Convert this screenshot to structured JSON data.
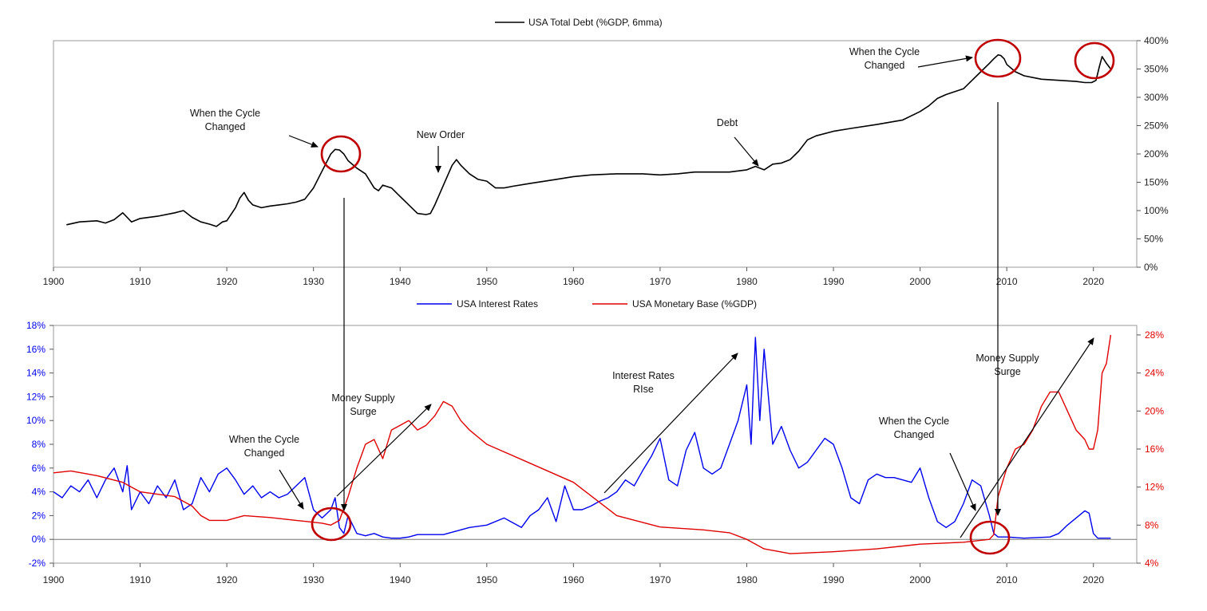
{
  "chart_data": [
    {
      "type": "line",
      "legend_position": "top-center",
      "grid": false,
      "xlim": [
        1900,
        2025
      ],
      "ylim": [
        0,
        400
      ],
      "x_ticks": [
        1900,
        1910,
        1920,
        1930,
        1940,
        1950,
        1960,
        1970,
        1980,
        1990,
        2000,
        2010,
        2020
      ],
      "y_ticks": [
        0,
        50,
        100,
        150,
        200,
        250,
        300,
        350,
        400
      ],
      "y_tick_labels": [
        "0%",
        "50%",
        "100%",
        "150%",
        "200%",
        "250%",
        "300%",
        "350%",
        "400%"
      ],
      "series": [
        {
          "name": "USA Total Debt (%GDP, 6mma)",
          "color": "#000000",
          "x": [
            1901.5,
            1903,
            1905,
            1906,
            1907,
            1908,
            1908.5,
            1909,
            1910,
            1912,
            1914,
            1915,
            1916,
            1917,
            1918,
            1918.8,
            1919.5,
            1920,
            1921,
            1921.5,
            1922,
            1922.5,
            1923,
            1924,
            1925,
            1926,
            1927,
            1928,
            1929,
            1930,
            1931,
            1932,
            1932.5,
            1933,
            1933.5,
            1934,
            1935,
            1936,
            1937,
            1937.5,
            1938,
            1939,
            1940,
            1941,
            1942,
            1943,
            1943.5,
            1944,
            1945,
            1946,
            1946.5,
            1947,
            1948,
            1949,
            1950,
            1951,
            1952,
            1953,
            1955,
            1958,
            1960,
            1962,
            1965,
            1968,
            1970,
            1972,
            1974,
            1976,
            1978,
            1980,
            1981,
            1982,
            1983,
            1984,
            1985,
            1986,
            1987,
            1988,
            1990,
            1992,
            1995,
            1998,
            2000,
            2001,
            2002,
            2003,
            2005,
            2006,
            2007,
            2008,
            2008.5,
            2009,
            2009.3,
            2009.7,
            2010,
            2011,
            2012,
            2014,
            2016,
            2018,
            2019,
            2019.8,
            2020.3,
            2020.7,
            2021,
            2021.5,
            2022
          ],
          "y": [
            75,
            80,
            82,
            78,
            84,
            96,
            88,
            80,
            86,
            90,
            96,
            100,
            88,
            80,
            76,
            72,
            80,
            82,
            105,
            122,
            132,
            118,
            110,
            105,
            108,
            110,
            112,
            115,
            120,
            140,
            170,
            200,
            208,
            207,
            200,
            188,
            175,
            165,
            140,
            135,
            145,
            140,
            125,
            110,
            95,
            93,
            95,
            110,
            145,
            180,
            190,
            180,
            165,
            155,
            152,
            140,
            140,
            143,
            148,
            155,
            160,
            163,
            165,
            165,
            163,
            165,
            168,
            168,
            168,
            172,
            178,
            172,
            182,
            184,
            190,
            205,
            225,
            232,
            240,
            245,
            252,
            260,
            275,
            285,
            298,
            305,
            315,
            330,
            345,
            360,
            368,
            375,
            374,
            368,
            358,
            345,
            338,
            332,
            330,
            328,
            326,
            326,
            330,
            355,
            372,
            360,
            350
          ]
        }
      ],
      "annotations": [
        {
          "text": [
            "When the Cycle",
            "Changed"
          ]
        },
        {
          "text": [
            "New Order"
          ]
        },
        {
          "text": [
            "Debt"
          ]
        },
        {
          "text": [
            "When the Cycle",
            "Changed"
          ]
        }
      ]
    },
    {
      "type": "line",
      "legend_position": "top-center",
      "grid": false,
      "xlim": [
        1900,
        2025
      ],
      "ylim": [
        -2,
        18
      ],
      "y2lim": [
        4,
        29
      ],
      "x_ticks": [
        1900,
        1910,
        1920,
        1930,
        1940,
        1950,
        1960,
        1970,
        1980,
        1990,
        2000,
        2010,
        2020
      ],
      "y_ticks": [
        -2,
        0,
        2,
        4,
        6,
        8,
        10,
        12,
        14,
        16,
        18
      ],
      "y_tick_labels": [
        "-2%",
        "0%",
        "2%",
        "4%",
        "6%",
        "8%",
        "10%",
        "12%",
        "14%",
        "16%",
        "18%"
      ],
      "y2_ticks": [
        4,
        8,
        12,
        16,
        20,
        24,
        28
      ],
      "y2_tick_labels": [
        "4%",
        "8%",
        "12%",
        "16%",
        "20%",
        "24%",
        "28%"
      ],
      "series": [
        {
          "name": "USA Interest Rates",
          "color": "#0000ee",
          "axis": "left",
          "x": [
            1900,
            1901,
            1902,
            1903,
            1904,
            1905,
            1906,
            1907,
            1908,
            1908.5,
            1909,
            1910,
            1911,
            1912,
            1913,
            1914,
            1915,
            1916,
            1917,
            1918,
            1919,
            1920,
            1921,
            1922,
            1923,
            1924,
            1925,
            1926,
            1927,
            1928,
            1929,
            1930,
            1931,
            1932,
            1932.5,
            1933,
            1933.5,
            1934,
            1935,
            1936,
            1937,
            1938,
            1939,
            1940,
            1941,
            1942,
            1945,
            1948,
            1950,
            1952,
            1954,
            1955,
            1956,
            1957,
            1958,
            1959,
            1960,
            1961,
            1962,
            1963,
            1964,
            1965,
            1966,
            1967,
            1968,
            1969,
            1970,
            1971,
            1972,
            1973,
            1974,
            1975,
            1976,
            1977,
            1978,
            1979,
            1980,
            1980.5,
            1981,
            1981.5,
            1982,
            1983,
            1984,
            1985,
            1986,
            1987,
            1988,
            1989,
            1990,
            1991,
            1992,
            1993,
            1994,
            1995,
            1996,
            1997,
            1998,
            1999,
            2000,
            2001,
            2002,
            2003,
            2004,
            2005,
            2006,
            2007,
            2008,
            2008.5,
            2009,
            2010,
            2012,
            2015,
            2016,
            2017,
            2018,
            2019,
            2019.5,
            2020,
            2020.5,
            2021,
            2022
          ],
          "y": [
            4,
            3.5,
            4.5,
            4,
            5,
            3.5,
            5,
            6,
            4,
            6.2,
            2.5,
            4,
            3,
            4.5,
            3.5,
            5,
            2.5,
            3,
            5.2,
            4,
            5.5,
            6,
            5,
            3.8,
            4.5,
            3.5,
            4,
            3.5,
            3.8,
            4.5,
            5.2,
            2.5,
            1.8,
            2.5,
            3.5,
            1,
            0.5,
            2,
            0.5,
            0.3,
            0.5,
            0.2,
            0.1,
            0.1,
            0.2,
            0.4,
            0.4,
            1,
            1.2,
            1.8,
            1,
            2,
            2.5,
            3.5,
            1.5,
            4.5,
            2.5,
            2.5,
            2.8,
            3.2,
            3.5,
            4,
            5,
            4.5,
            5.8,
            7,
            8.5,
            5,
            4.5,
            7.5,
            9,
            6,
            5.5,
            6,
            8,
            10,
            13,
            8,
            17,
            10,
            16,
            8,
            9.5,
            7.5,
            6,
            6.5,
            7.5,
            8.5,
            8,
            6,
            3.5,
            3,
            5,
            5.5,
            5.2,
            5.2,
            5,
            4.8,
            6,
            3.5,
            1.5,
            1,
            1.5,
            3,
            5,
            4.5,
            2,
            0.5,
            0.2,
            0.2,
            0.1,
            0.2,
            0.5,
            1.2,
            1.8,
            2.4,
            2.2,
            0.5,
            0.1,
            0.1,
            0.1
          ]
        },
        {
          "name": "USA Monetary Base (%GDP)",
          "color": "#e00000",
          "axis": "right",
          "x": [
            1900,
            1902,
            1905,
            1908,
            1910,
            1914,
            1916,
            1917,
            1918,
            1920,
            1922,
            1925,
            1928,
            1931,
            1932,
            1933,
            1934,
            1935,
            1936,
            1937,
            1938,
            1939,
            1940,
            1941,
            1942,
            1943,
            1944,
            1945,
            1946,
            1947,
            1948,
            1950,
            1955,
            1960,
            1965,
            1970,
            1975,
            1978,
            1980,
            1982,
            1985,
            1990,
            1995,
            2000,
            2005,
            2008,
            2008.5,
            2009,
            2010,
            2011,
            2012,
            2013,
            2014,
            2015,
            2016,
            2017,
            2018,
            2019,
            2019.5,
            2020,
            2020.5,
            2021,
            2021.5,
            2022
          ],
          "y": [
            13.5,
            13.7,
            13.2,
            12.5,
            11.5,
            11,
            10,
            9,
            8.5,
            8.5,
            9,
            8.8,
            8.5,
            8.2,
            8,
            8.5,
            11,
            14,
            16.5,
            17,
            15,
            18,
            18.5,
            19,
            18,
            18.5,
            19.5,
            21,
            20.5,
            19,
            18,
            16.5,
            14.5,
            12.5,
            9,
            7.8,
            7.5,
            7.2,
            6.5,
            5.5,
            5,
            5.2,
            5.5,
            6,
            6.2,
            6.5,
            7,
            11,
            14,
            16,
            16.5,
            18,
            20.5,
            22,
            22,
            20,
            18,
            17,
            16,
            16,
            18,
            24,
            25,
            28
          ]
        }
      ],
      "annotations": [
        {
          "text": [
            "When the Cycle",
            "Changed"
          ]
        },
        {
          "text": [
            "Money Supply",
            "Surge"
          ]
        },
        {
          "text": [
            "Interest Rates",
            "RIse"
          ]
        },
        {
          "text": [
            "When the Cycle",
            "Changed"
          ]
        },
        {
          "text": [
            "Money Supply",
            "Surge"
          ]
        }
      ]
    }
  ]
}
